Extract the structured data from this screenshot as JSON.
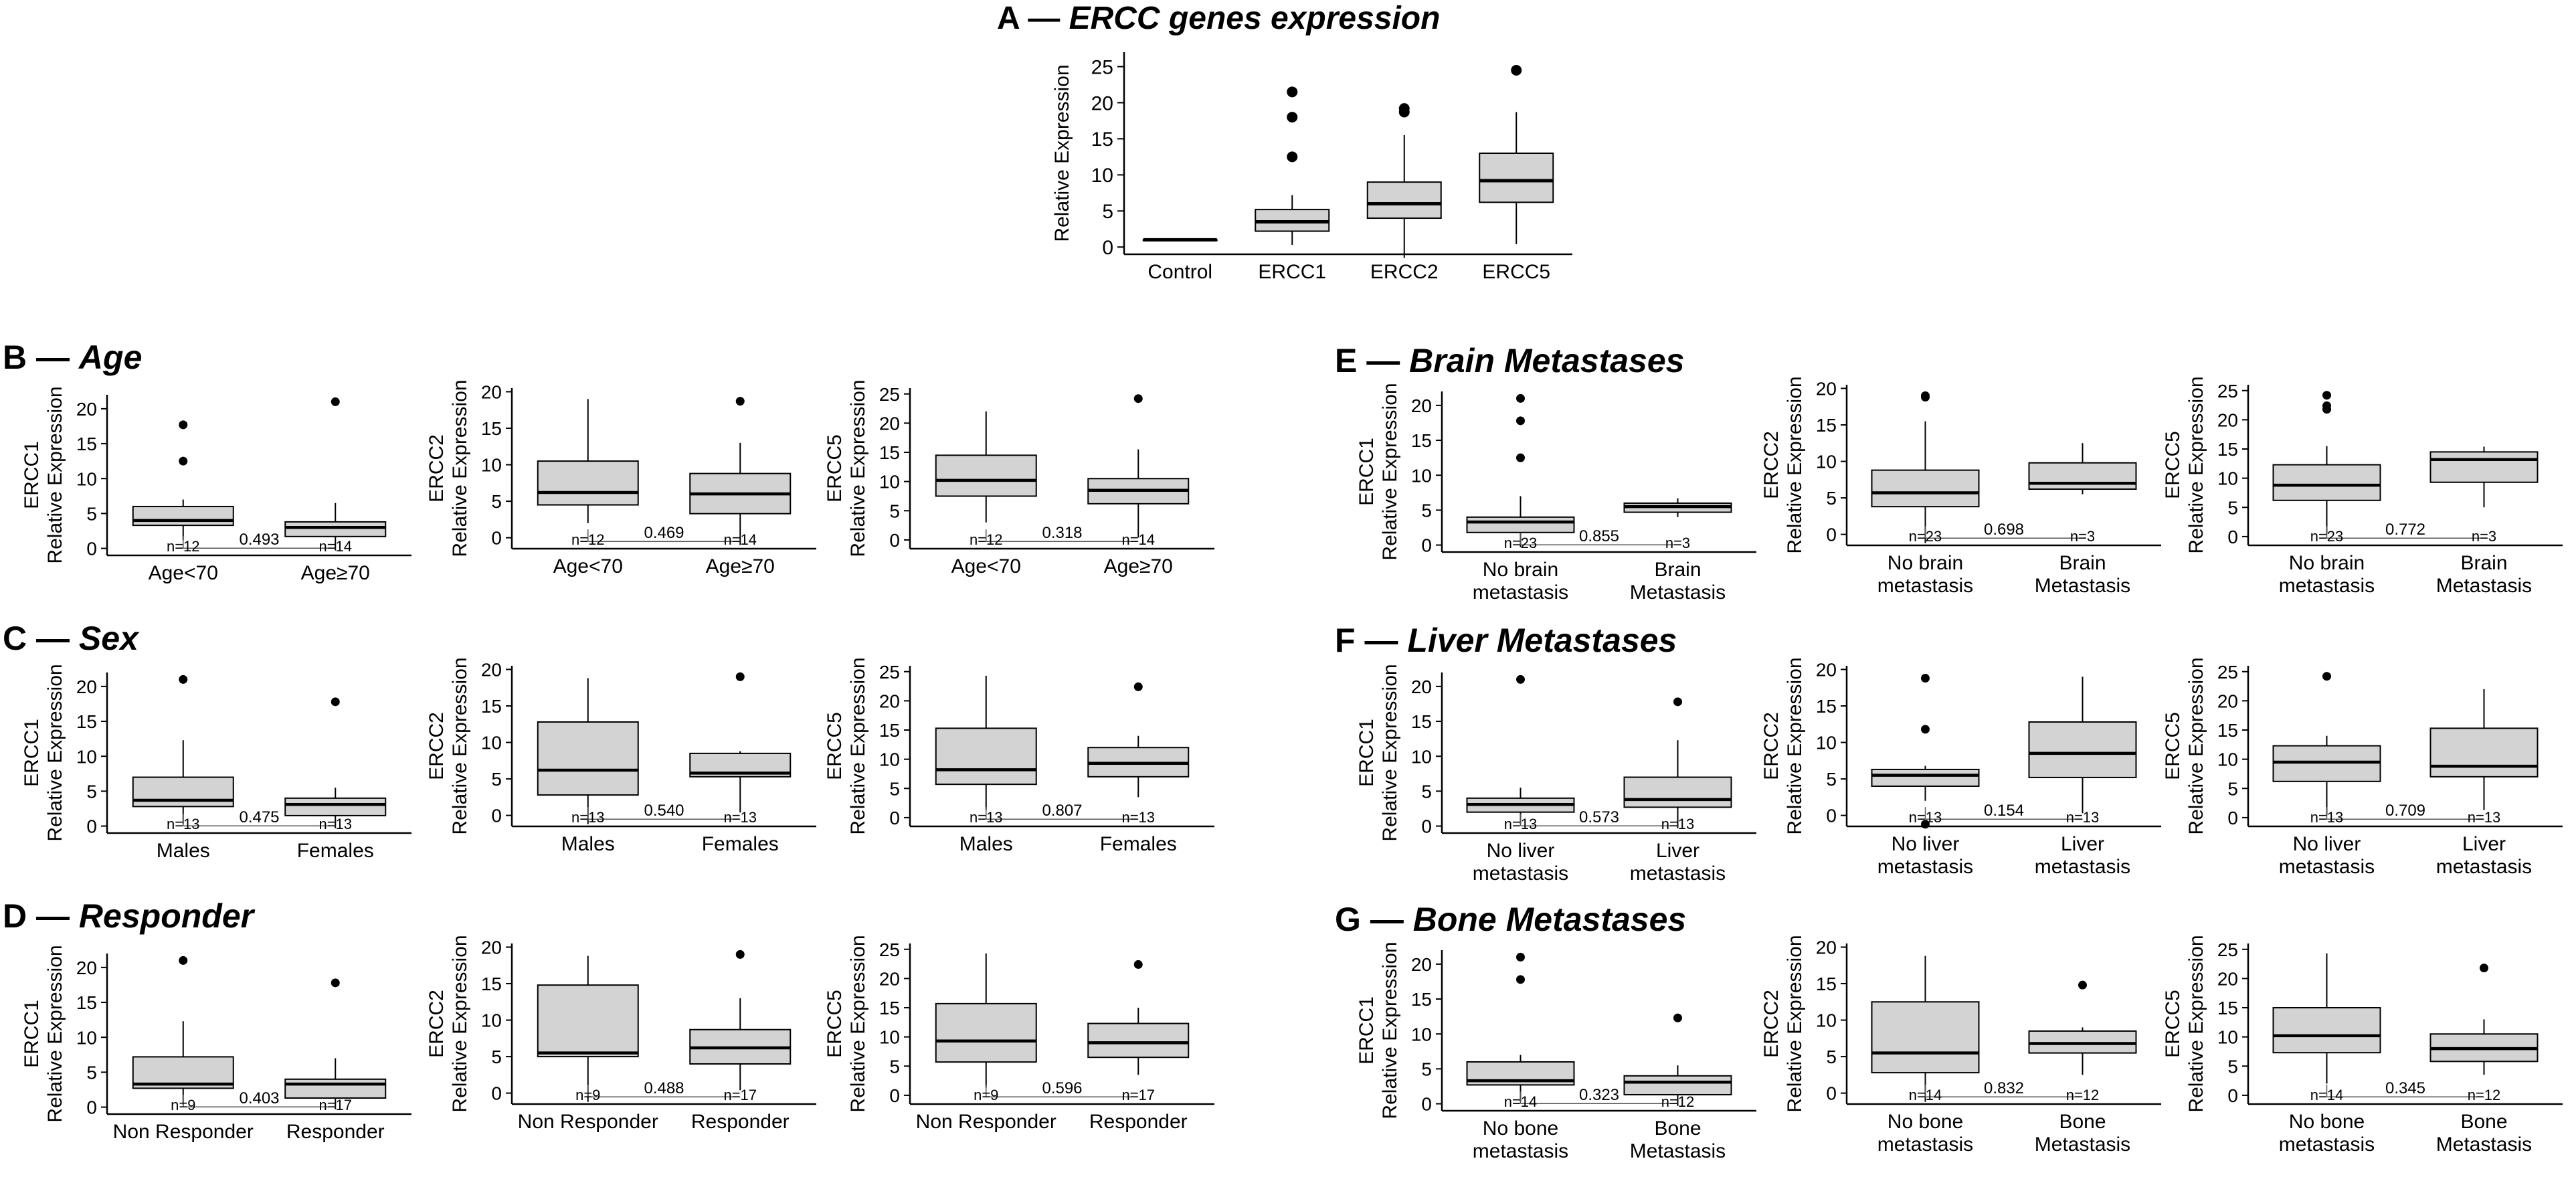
{
  "sections": {
    "A": {
      "letter": "A",
      "dash": "—",
      "title": "ERCC genes expression"
    },
    "B": {
      "letter": "B",
      "dash": "—",
      "title": "Age"
    },
    "C": {
      "letter": "C",
      "dash": "—",
      "title": "Sex"
    },
    "D": {
      "letter": "D",
      "dash": "—",
      "title": "Responder"
    },
    "E": {
      "letter": "E",
      "dash": "—",
      "title": "Brain Metastases"
    },
    "F": {
      "letter": "F",
      "dash": "—",
      "title": "Liver Metastases"
    },
    "G": {
      "letter": "G",
      "dash": "—",
      "title": "Bone Metastases"
    }
  },
  "colors": {
    "box_fill": "#d3d3d3",
    "stroke": "#000000",
    "bracket": "#555555"
  },
  "chart_data": [
    {
      "id": "A",
      "type": "boxplot",
      "ylabel": [
        "Relative Expression"
      ],
      "ylim": [
        -1,
        27
      ],
      "yticks": [
        0,
        5,
        10,
        15,
        20,
        25
      ],
      "categories": [
        "Control",
        "ERCC1",
        "ERCC2",
        "ERCC5"
      ],
      "boxes": [
        {
          "min": 1,
          "q1": 1,
          "median": 1,
          "q3": 1,
          "max": 1,
          "outliers": []
        },
        {
          "min": 0.3,
          "q1": 2.2,
          "median": 3.5,
          "q3": 5.2,
          "max": 7.2,
          "outliers": [
            12.5,
            18,
            21.5
          ]
        },
        {
          "min": -1.5,
          "q1": 4,
          "median": 6,
          "q3": 9,
          "max": 15.5,
          "outliers": [
            18.7,
            19.2
          ]
        },
        {
          "min": 0.4,
          "q1": 6.2,
          "median": 9.2,
          "q3": 13,
          "max": 18.7,
          "outliers": [
            24.5
          ]
        }
      ]
    },
    {
      "id": "B1",
      "type": "boxplot",
      "ylabel": [
        "ERCC1",
        "Relative Expression"
      ],
      "ylim": [
        -1,
        22
      ],
      "yticks": [
        0,
        5,
        10,
        15,
        20
      ],
      "categories": [
        "Age<70",
        "Age≥70"
      ],
      "n": [
        "n=12",
        "n=14"
      ],
      "pvalue": "0.493",
      "boxes": [
        {
          "min": 1.2,
          "q1": 3.3,
          "median": 4,
          "q3": 6,
          "max": 7,
          "outliers": [
            12.5,
            17.7
          ]
        },
        {
          "min": -0.3,
          "q1": 1.7,
          "median": 3,
          "q3": 3.8,
          "max": 6.5,
          "outliers": [
            21
          ]
        }
      ]
    },
    {
      "id": "B2",
      "type": "boxplot",
      "ylabel": [
        "ERCC2",
        "Relative Expression"
      ],
      "ylim": [
        -1.5,
        20.5
      ],
      "yticks": [
        0,
        5,
        10,
        15,
        20
      ],
      "categories": [
        "Age<70",
        "Age≥70"
      ],
      "n": [
        "n=12",
        "n=14"
      ],
      "pvalue": "0.469",
      "boxes": [
        {
          "min": 2,
          "q1": 4.5,
          "median": 6.2,
          "q3": 10.5,
          "max": 19,
          "outliers": []
        },
        {
          "min": -1,
          "q1": 3.3,
          "median": 6,
          "q3": 8.8,
          "max": 13,
          "outliers": [
            18.7
          ]
        }
      ]
    },
    {
      "id": "B3",
      "type": "boxplot",
      "ylabel": [
        "ERCC5",
        "Relative Expression"
      ],
      "ylim": [
        -1.5,
        26
      ],
      "yticks": [
        0,
        5,
        10,
        15,
        20,
        25
      ],
      "categories": [
        "Age<70",
        "Age≥70"
      ],
      "n": [
        "n=12",
        "n=14"
      ],
      "pvalue": "0.318",
      "boxes": [
        {
          "min": 3,
          "q1": 7.5,
          "median": 10.2,
          "q3": 14.5,
          "max": 22,
          "outliers": []
        },
        {
          "min": 0.4,
          "q1": 6.2,
          "median": 8.5,
          "q3": 10.5,
          "max": 15.5,
          "outliers": [
            24.2
          ]
        }
      ]
    },
    {
      "id": "C1",
      "type": "boxplot",
      "ylabel": [
        "ERCC1",
        "Relative Expression"
      ],
      "ylim": [
        -1,
        22
      ],
      "yticks": [
        0,
        5,
        10,
        15,
        20
      ],
      "categories": [
        "Males",
        "Females"
      ],
      "n": [
        "n=13",
        "n=13"
      ],
      "pvalue": "0.475",
      "boxes": [
        {
          "min": 0.3,
          "q1": 2.8,
          "median": 3.7,
          "q3": 7,
          "max": 12.3,
          "outliers": [
            21
          ]
        },
        {
          "min": -0.3,
          "q1": 1.5,
          "median": 3.1,
          "q3": 4,
          "max": 5.5,
          "outliers": [
            17.8
          ]
        }
      ]
    },
    {
      "id": "C2",
      "type": "boxplot",
      "ylabel": [
        "ERCC2",
        "Relative Expression"
      ],
      "ylim": [
        -1.5,
        20.5
      ],
      "yticks": [
        0,
        5,
        10,
        15,
        20
      ],
      "categories": [
        "Males",
        "Females"
      ],
      "n": [
        "n=13",
        "n=13"
      ],
      "pvalue": "0.540",
      "boxes": [
        {
          "min": -1.2,
          "q1": 2.8,
          "median": 6.2,
          "q3": 12.8,
          "max": 18.8,
          "outliers": []
        },
        {
          "min": 0.4,
          "q1": 5.3,
          "median": 5.8,
          "q3": 8.5,
          "max": 8.8,
          "outliers": [
            19
          ]
        }
      ]
    },
    {
      "id": "C3",
      "type": "boxplot",
      "ylabel": [
        "ERCC5",
        "Relative Expression"
      ],
      "ylim": [
        -1.5,
        26
      ],
      "yticks": [
        0,
        5,
        10,
        15,
        20,
        25
      ],
      "categories": [
        "Males",
        "Females"
      ],
      "n": [
        "n=13",
        "n=13"
      ],
      "pvalue": "0.807",
      "boxes": [
        {
          "min": 1.3,
          "q1": 5.7,
          "median": 8.2,
          "q3": 15.3,
          "max": 24.3,
          "outliers": []
        },
        {
          "min": 3.5,
          "q1": 7,
          "median": 9.3,
          "q3": 12,
          "max": 14,
          "outliers": [
            22.4
          ]
        }
      ]
    },
    {
      "id": "D1",
      "type": "boxplot",
      "ylabel": [
        "ERCC1",
        "Relative Expression"
      ],
      "ylim": [
        -1,
        22
      ],
      "yticks": [
        0,
        5,
        10,
        15,
        20
      ],
      "categories": [
        "Non Responder",
        "Responder"
      ],
      "n": [
        "n=9",
        "n=17"
      ],
      "pvalue": "0.403",
      "boxes": [
        {
          "min": 0.3,
          "q1": 2.7,
          "median": 3.3,
          "q3": 7.2,
          "max": 12.3,
          "outliers": [
            21
          ]
        },
        {
          "min": -0.3,
          "q1": 1.3,
          "median": 3.3,
          "q3": 4,
          "max": 7,
          "outliers": [
            17.8
          ]
        }
      ]
    },
    {
      "id": "D2",
      "type": "boxplot",
      "ylabel": [
        "ERCC2",
        "Relative Expression"
      ],
      "ylim": [
        -1.5,
        20.5
      ],
      "yticks": [
        0,
        5,
        10,
        15,
        20
      ],
      "categories": [
        "Non Responder",
        "Responder"
      ],
      "n": [
        "n=9",
        "n=17"
      ],
      "pvalue": "0.488",
      "boxes": [
        {
          "min": -1.2,
          "q1": 5,
          "median": 5.5,
          "q3": 14.8,
          "max": 18.8,
          "outliers": []
        },
        {
          "min": 0.4,
          "q1": 4,
          "median": 6.2,
          "q3": 8.7,
          "max": 13,
          "outliers": [
            19
          ]
        }
      ]
    },
    {
      "id": "D3",
      "type": "boxplot",
      "ylabel": [
        "ERCC5",
        "Relative Expression"
      ],
      "ylim": [
        -1.5,
        26
      ],
      "yticks": [
        0,
        5,
        10,
        15,
        20,
        25
      ],
      "categories": [
        "Non Responder",
        "Responder"
      ],
      "n": [
        "n=9",
        "n=17"
      ],
      "pvalue": "0.596",
      "boxes": [
        {
          "min": 1.3,
          "q1": 5.7,
          "median": 9.3,
          "q3": 15.7,
          "max": 24.3,
          "outliers": []
        },
        {
          "min": 3.5,
          "q1": 6.5,
          "median": 9,
          "q3": 12.3,
          "max": 15,
          "outliers": [
            22.4
          ]
        }
      ]
    },
    {
      "id": "E1",
      "type": "boxplot",
      "ylabel": [
        "ERCC1",
        "Relative Expression"
      ],
      "ylim": [
        -1,
        22
      ],
      "yticks": [
        0,
        5,
        10,
        15,
        20
      ],
      "categories": [
        "No brain\nmetastasis",
        "Brain\nMetastasis"
      ],
      "n": [
        "n=23",
        "n=3"
      ],
      "pvalue": "0.855",
      "boxes": [
        {
          "min": -0.3,
          "q1": 1.8,
          "median": 3.3,
          "q3": 4,
          "max": 7,
          "outliers": [
            12.5,
            17.8,
            21
          ]
        },
        {
          "min": 4,
          "q1": 4.7,
          "median": 5.5,
          "q3": 6,
          "max": 6.7,
          "outliers": []
        }
      ]
    },
    {
      "id": "E2",
      "type": "boxplot",
      "ylabel": [
        "ERCC2",
        "Relative Expression"
      ],
      "ylim": [
        -1.5,
        20.5
      ],
      "yticks": [
        0,
        5,
        10,
        15,
        20
      ],
      "categories": [
        "No brain\nmetastasis",
        "Brain\nMetastasis"
      ],
      "n": [
        "n=23",
        "n=3"
      ],
      "pvalue": "0.698",
      "boxes": [
        {
          "min": -1.2,
          "q1": 3.8,
          "median": 5.7,
          "q3": 8.8,
          "max": 15.5,
          "outliers": [
            18.8,
            19
          ]
        },
        {
          "min": 5.5,
          "q1": 6.2,
          "median": 7,
          "q3": 9.8,
          "max": 12.5,
          "outliers": []
        }
      ]
    },
    {
      "id": "E3",
      "type": "boxplot",
      "ylabel": [
        "ERCC5",
        "Relative Expression"
      ],
      "ylim": [
        -1.5,
        26
      ],
      "yticks": [
        0,
        5,
        10,
        15,
        20,
        25
      ],
      "categories": [
        "No brain\nmetastasis",
        "Brain\nMetastasis"
      ],
      "n": [
        "n=23",
        "n=3"
      ],
      "pvalue": "0.772",
      "boxes": [
        {
          "min": 0.4,
          "q1": 6.2,
          "median": 8.8,
          "q3": 12.3,
          "max": 15.5,
          "outliers": [
            21.8,
            22.4,
            24.2
          ]
        },
        {
          "min": 5,
          "q1": 9.3,
          "median": 13.2,
          "q3": 14.5,
          "max": 15.4,
          "outliers": []
        }
      ]
    },
    {
      "id": "F1",
      "type": "boxplot",
      "ylabel": [
        "ERCC1",
        "Relative Expression"
      ],
      "ylim": [
        -1,
        22
      ],
      "yticks": [
        0,
        5,
        10,
        15,
        20
      ],
      "categories": [
        "No liver\nmetastasis",
        "Liver\nmetastasis"
      ],
      "n": [
        "n=13",
        "n=13"
      ],
      "pvalue": "0.573",
      "boxes": [
        {
          "min": 0.3,
          "q1": 2,
          "median": 3.1,
          "q3": 4,
          "max": 5.5,
          "outliers": [
            21
          ]
        },
        {
          "min": -0.3,
          "q1": 2.7,
          "median": 3.8,
          "q3": 7,
          "max": 12.3,
          "outliers": [
            17.8
          ]
        }
      ]
    },
    {
      "id": "F2",
      "type": "boxplot",
      "ylabel": [
        "ERCC2",
        "Relative Expression"
      ],
      "ylim": [
        -1.5,
        20.5
      ],
      "yticks": [
        0,
        5,
        10,
        15,
        20
      ],
      "categories": [
        "No liver\nmetastasis",
        "Liver\nmetastasis"
      ],
      "n": [
        "n=13",
        "n=13"
      ],
      "pvalue": "0.154",
      "boxes": [
        {
          "min": 2,
          "q1": 4,
          "median": 5.5,
          "q3": 6.3,
          "max": 6.8,
          "outliers": [
            11.8,
            18.8,
            -1.2
          ]
        },
        {
          "min": 0.3,
          "q1": 5.2,
          "median": 8.5,
          "q3": 12.8,
          "max": 19,
          "outliers": []
        }
      ]
    },
    {
      "id": "F3",
      "type": "boxplot",
      "ylabel": [
        "ERCC5",
        "Relative Expression"
      ],
      "ylim": [
        -1.5,
        26
      ],
      "yticks": [
        0,
        5,
        10,
        15,
        20,
        25
      ],
      "categories": [
        "No liver\nmetastasis",
        "Liver\nmetastasis"
      ],
      "n": [
        "n=13",
        "n=13"
      ],
      "pvalue": "0.709",
      "boxes": [
        {
          "min": 0.4,
          "q1": 6.2,
          "median": 9.5,
          "q3": 12.3,
          "max": 14,
          "outliers": [
            24.2
          ]
        },
        {
          "min": 1.3,
          "q1": 7,
          "median": 8.8,
          "q3": 15.3,
          "max": 22,
          "outliers": []
        }
      ]
    },
    {
      "id": "G1",
      "type": "boxplot",
      "ylabel": [
        "ERCC1",
        "Relative Expression"
      ],
      "ylim": [
        -1,
        22
      ],
      "yticks": [
        0,
        5,
        10,
        15,
        20
      ],
      "categories": [
        "No bone\nmetastasis",
        "Bone\nMetastasis"
      ],
      "n": [
        "n=14",
        "n=12"
      ],
      "pvalue": "0.323",
      "boxes": [
        {
          "min": 0.3,
          "q1": 2.7,
          "median": 3.3,
          "q3": 6,
          "max": 7,
          "outliers": [
            17.8,
            21
          ]
        },
        {
          "min": -0.3,
          "q1": 1.3,
          "median": 3.1,
          "q3": 4,
          "max": 5.5,
          "outliers": [
            12.3
          ]
        }
      ]
    },
    {
      "id": "G2",
      "type": "boxplot",
      "ylabel": [
        "ERCC2",
        "Relative Expression"
      ],
      "ylim": [
        -1.5,
        20.5
      ],
      "yticks": [
        0,
        5,
        10,
        15,
        20
      ],
      "categories": [
        "No bone\nmetastasis",
        "Bone\nMetastasis"
      ],
      "n": [
        "n=14",
        "n=12"
      ],
      "pvalue": "0.832",
      "boxes": [
        {
          "min": -1.2,
          "q1": 2.8,
          "median": 5.5,
          "q3": 12.5,
          "max": 18.8,
          "outliers": []
        },
        {
          "min": 2.5,
          "q1": 5.5,
          "median": 6.8,
          "q3": 8.5,
          "max": 9,
          "outliers": [
            14.8
          ]
        }
      ]
    },
    {
      "id": "G3",
      "type": "boxplot",
      "ylabel": [
        "ERCC5",
        "Relative Expression"
      ],
      "ylim": [
        -1.5,
        26
      ],
      "yticks": [
        0,
        5,
        10,
        15,
        20,
        25
      ],
      "categories": [
        "No bone\nmetastasis",
        "Bone\nMetastasis"
      ],
      "n": [
        "n=14",
        "n=12"
      ],
      "pvalue": "0.345",
      "boxes": [
        {
          "min": 2,
          "q1": 7.3,
          "median": 10.2,
          "q3": 15,
          "max": 24.3,
          "outliers": []
        },
        {
          "min": 3.5,
          "q1": 5.8,
          "median": 8,
          "q3": 10.5,
          "max": 13,
          "outliers": [
            21.8
          ]
        }
      ]
    }
  ]
}
